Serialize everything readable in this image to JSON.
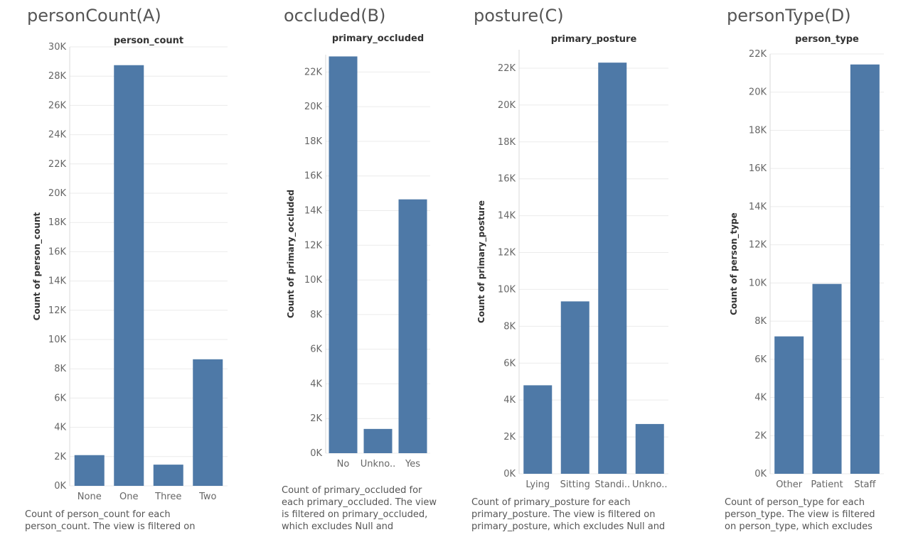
{
  "colors": {
    "bar": "#4e79a7",
    "gridline": "#ebebeb",
    "tick_text": "#666666",
    "title_text": "#555555",
    "header_text": "#333333"
  },
  "chart_data": [
    {
      "id": "A",
      "panel_title": "personCount(A)",
      "type": "bar",
      "title": "person_count",
      "ylabel": "Count of person_count",
      "categories": [
        "None",
        "One",
        "Three",
        "Two"
      ],
      "values": [
        2100,
        28750,
        1450,
        8650
      ],
      "ylim": [
        0,
        30000
      ],
      "yticks": [
        0,
        2000,
        4000,
        6000,
        8000,
        10000,
        12000,
        14000,
        16000,
        18000,
        20000,
        22000,
        24000,
        26000,
        28000,
        30000
      ],
      "ytick_labels": [
        "0K",
        "2K",
        "4K",
        "6K",
        "8K",
        "10K",
        "12K",
        "14K",
        "16K",
        "18K",
        "20K",
        "22K",
        "24K",
        "26K",
        "28K",
        "30K"
      ],
      "grid": true,
      "caption": [
        "Count of person_count for each",
        "person_count. The view is filtered on"
      ]
    },
    {
      "id": "B",
      "panel_title": "occluded(B)",
      "type": "bar",
      "title": "primary_occluded",
      "ylabel": "Count of primary_occluded",
      "categories": [
        "No",
        "Unkno..",
        "Yes"
      ],
      "values": [
        22900,
        1400,
        14650
      ],
      "ylim": [
        0,
        23000
      ],
      "yticks": [
        0,
        2000,
        4000,
        6000,
        8000,
        10000,
        12000,
        14000,
        16000,
        18000,
        20000,
        22000
      ],
      "ytick_labels": [
        "0K",
        "2K",
        "4K",
        "6K",
        "8K",
        "10K",
        "12K",
        "14K",
        "16K",
        "18K",
        "20K",
        "22K"
      ],
      "grid": true,
      "caption": [
        "Count of primary_occluded for",
        "each primary_occluded. The view",
        "is filtered on primary_occluded,",
        "which excludes Null and"
      ]
    },
    {
      "id": "C",
      "panel_title": "posture(C)",
      "type": "bar",
      "title": "primary_posture",
      "ylabel": "Count of primary_posture",
      "categories": [
        "Lying",
        "Sitting",
        "Standi..",
        "Unkno.."
      ],
      "values": [
        4800,
        9350,
        22300,
        2700
      ],
      "ylim": [
        0,
        23000
      ],
      "yticks": [
        0,
        2000,
        4000,
        6000,
        8000,
        10000,
        12000,
        14000,
        16000,
        18000,
        20000,
        22000
      ],
      "ytick_labels": [
        "0K",
        "2K",
        "4K",
        "6K",
        "8K",
        "10K",
        "12K",
        "14K",
        "16K",
        "18K",
        "20K",
        "22K"
      ],
      "grid": true,
      "caption": [
        "Count of primary_posture for each",
        "primary_posture. The view is filtered on",
        "primary_posture, which excludes Null and"
      ]
    },
    {
      "id": "D",
      "panel_title": "personType(D)",
      "type": "bar",
      "title": "person_type",
      "ylabel": "Count of person_type",
      "categories": [
        "Other",
        "Patient",
        "Staff"
      ],
      "values": [
        7200,
        9950,
        21450
      ],
      "ylim": [
        0,
        22000
      ],
      "yticks": [
        0,
        2000,
        4000,
        6000,
        8000,
        10000,
        12000,
        14000,
        16000,
        18000,
        20000,
        22000
      ],
      "ytick_labels": [
        "0K",
        "2K",
        "4K",
        "6K",
        "8K",
        "10K",
        "12K",
        "14K",
        "16K",
        "18K",
        "20K",
        "22K"
      ],
      "grid": true,
      "caption": [
        "Count of person_type for each",
        "person_type. The view is filtered",
        "on person_type, which excludes"
      ]
    }
  ]
}
